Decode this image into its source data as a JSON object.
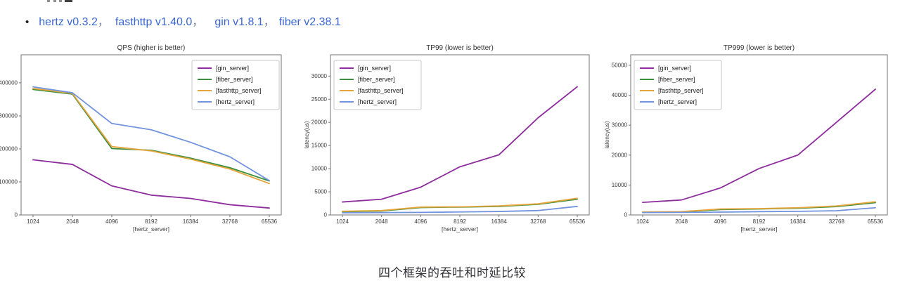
{
  "page": {
    "bullet": "•",
    "separator": "，",
    "links": [
      {
        "label": "hertz v0.3.2"
      },
      {
        "label": "fasthttp v1.40.0"
      },
      {
        "label": "gin v1.8.1"
      },
      {
        "label": "fiber v2.38.1"
      }
    ],
    "caption": "四个框架的吞吐和时延比较",
    "link_color": "#3b66d1"
  },
  "chart_data": [
    {
      "type": "line",
      "title": "QPS (higher is better)",
      "xlabel": "[hertz_server]",
      "ylabel": "",
      "categories": [
        "1024",
        "2048",
        "4096",
        "8192",
        "16384",
        "32768",
        "65536"
      ],
      "ylim": [
        0,
        485000
      ],
      "yticks": [
        0,
        100000,
        200000,
        300000,
        400000
      ],
      "legend_position": "top-right",
      "grid": false,
      "series": [
        {
          "name": "[gin_server]",
          "color": "#8e2d9d",
          "values": [
            167000,
            153000,
            88000,
            60000,
            50000,
            31000,
            21000
          ]
        },
        {
          "name": "[fiber_server]",
          "color": "#3c8f3c",
          "values": [
            380000,
            366000,
            201000,
            196000,
            172000,
            143000,
            103000
          ]
        },
        {
          "name": "[fasthttp_server]",
          "color": "#e6a43c",
          "values": [
            383000,
            368000,
            207000,
            194000,
            169000,
            139000,
            95000
          ]
        },
        {
          "name": "[hertz_server]",
          "color": "#7293de",
          "values": [
            388000,
            370000,
            277000,
            258000,
            220000,
            176000,
            104000
          ]
        }
      ]
    },
    {
      "type": "line",
      "title": "TP99 (lower is better)",
      "xlabel": "[hertz_server]",
      "ylabel": "latency(us)",
      "categories": [
        "1024",
        "2048",
        "4096",
        "8192",
        "16384",
        "32768",
        "65536"
      ],
      "ylim": [
        0,
        34600
      ],
      "yticks": [
        0,
        5000,
        10000,
        15000,
        20000,
        25000,
        30000
      ],
      "legend_position": "top-left",
      "grid": false,
      "series": [
        {
          "name": "[gin_server]",
          "color": "#8e2d9d",
          "values": [
            2800,
            3400,
            6000,
            10400,
            13000,
            21000,
            27700
          ]
        },
        {
          "name": "[fiber_server]",
          "color": "#3c8f3c",
          "values": [
            700,
            850,
            1600,
            1700,
            1850,
            2300,
            3400
          ]
        },
        {
          "name": "[fasthttp_server]",
          "color": "#e6a43c",
          "values": [
            800,
            950,
            1700,
            1750,
            1950,
            2400,
            3600
          ]
        },
        {
          "name": "[hertz_server]",
          "color": "#7293de",
          "values": [
            450,
            500,
            550,
            650,
            750,
            950,
            1850
          ]
        }
      ]
    },
    {
      "type": "line",
      "title": "TP999 (lower is better)",
      "xlabel": "[hertz_server]",
      "ylabel": "latency(us)",
      "categories": [
        "1024",
        "2048",
        "4096",
        "8192",
        "16384",
        "32768",
        "65536"
      ],
      "ylim": [
        0,
        53500
      ],
      "yticks": [
        0,
        10000,
        20000,
        30000,
        40000,
        50000
      ],
      "legend_position": "top-left",
      "grid": false,
      "series": [
        {
          "name": "[gin_server]",
          "color": "#8e2d9d",
          "values": [
            4200,
            5000,
            9000,
            15500,
            20000,
            31000,
            42000
          ]
        },
        {
          "name": "[fiber_server]",
          "color": "#3c8f3c",
          "values": [
            900,
            1000,
            1800,
            2000,
            2250,
            2800,
            4100
          ]
        },
        {
          "name": "[fasthttp_server]",
          "color": "#e6a43c",
          "values": [
            1000,
            1100,
            2000,
            2100,
            2400,
            3000,
            4400
          ]
        },
        {
          "name": "[hertz_server]",
          "color": "#7293de",
          "values": [
            800,
            850,
            950,
            1100,
            1200,
            1400,
            2400
          ]
        }
      ]
    }
  ]
}
